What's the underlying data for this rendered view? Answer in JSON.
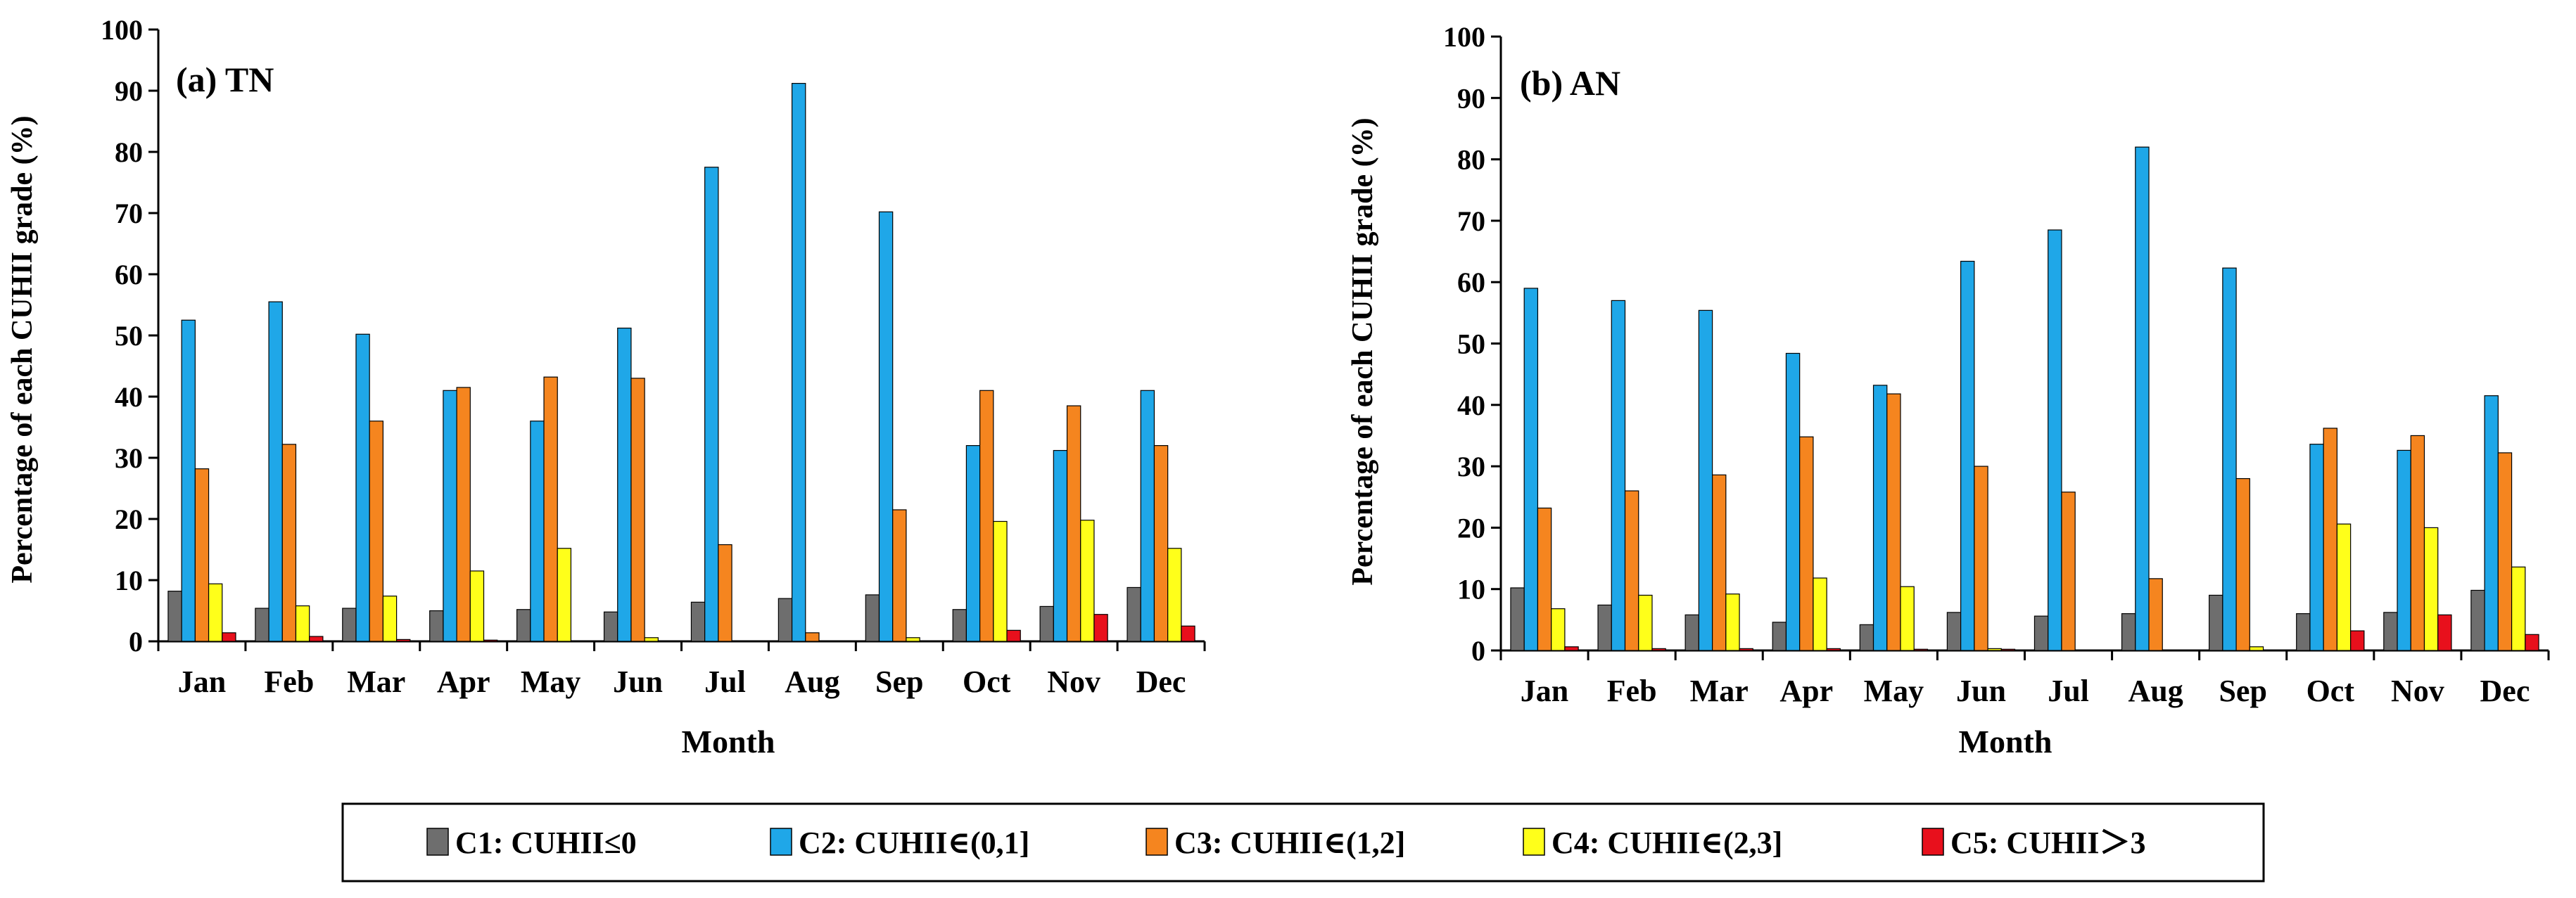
{
  "chart_data": [
    {
      "panel_label": "(a) TN",
      "type": "bar",
      "categories": [
        "Jan",
        "Feb",
        "Mar",
        "Apr",
        "May",
        "Jun",
        "Jul",
        "Aug",
        "Sep",
        "Oct",
        "Nov",
        "Dec"
      ],
      "xlabel": "Month",
      "ylabel": "Percentage of each CUHII grade (%)",
      "ylim": [
        0,
        100
      ],
      "yticks": [
        "0",
        "10",
        "20",
        "30",
        "40",
        "50",
        "60",
        "70",
        "80",
        "90",
        "100"
      ],
      "series": [
        {
          "name": "C1: CUHII≤0",
          "values": [
            8.2,
            5.4,
            5.4,
            5.0,
            5.2,
            4.8,
            6.4,
            7.0,
            7.6,
            5.2,
            5.7,
            8.8
          ]
        },
        {
          "name": "C2: CUHII∈(0,1]",
          "values": [
            52.5,
            55.5,
            50.2,
            41.0,
            36.0,
            51.2,
            77.5,
            91.2,
            70.2,
            32.0,
            31.2,
            41.0
          ]
        },
        {
          "name": "C3: CUHII∈(1,2]",
          "values": [
            28.2,
            32.2,
            36.0,
            41.5,
            43.2,
            43.0,
            15.8,
            1.4,
            21.5,
            41.0,
            38.5,
            32.0
          ]
        },
        {
          "name": "C4: CUHII∈(2,3]",
          "values": [
            9.4,
            5.8,
            7.4,
            11.5,
            15.2,
            0.6,
            0.0,
            0.0,
            0.6,
            19.6,
            19.8,
            15.2
          ]
        },
        {
          "name": "C5: CUHII＞3",
          "values": [
            1.4,
            0.8,
            0.3,
            0.2,
            0.1,
            0.1,
            0.0,
            0.0,
            0.0,
            1.8,
            4.4,
            2.5
          ]
        }
      ]
    },
    {
      "panel_label": "(b)  AN",
      "type": "bar",
      "categories": [
        "Jan",
        "Feb",
        "Mar",
        "Apr",
        "May",
        "Jun",
        "Jul",
        "Aug",
        "Sep",
        "Oct",
        "Nov",
        "Dec"
      ],
      "xlabel": "Month",
      "ylabel": "Percentage of each CUHII grade (%)",
      "ylim": [
        0,
        100
      ],
      "yticks": [
        "0",
        "10",
        "20",
        "30",
        "40",
        "50",
        "60",
        "70",
        "80",
        "90",
        "100"
      ],
      "series": [
        {
          "name": "C1: CUHII≤0",
          "values": [
            10.2,
            7.4,
            5.8,
            4.6,
            4.2,
            6.2,
            5.6,
            6.0,
            9.0,
            6.0,
            6.2,
            9.8
          ]
        },
        {
          "name": "C2: CUHII∈(0,1]",
          "values": [
            59.0,
            57.0,
            55.4,
            48.4,
            43.2,
            63.4,
            68.5,
            82.0,
            62.3,
            33.6,
            32.6,
            41.5
          ]
        },
        {
          "name": "C3: CUHII∈(1,2]",
          "values": [
            23.2,
            26.0,
            28.6,
            34.8,
            41.8,
            30.0,
            25.8,
            11.7,
            28.0,
            36.2,
            35.0,
            32.2
          ]
        },
        {
          "name": "C4: CUHII∈(2,3]",
          "values": [
            6.8,
            9.0,
            9.2,
            11.8,
            10.4,
            0.3,
            0.1,
            0.0,
            0.6,
            20.6,
            20.0,
            13.6
          ]
        },
        {
          "name": "C5: CUHII＞3",
          "values": [
            0.6,
            0.3,
            0.3,
            0.3,
            0.2,
            0.2,
            0.1,
            0.0,
            0.0,
            3.2,
            5.8,
            2.6
          ]
        }
      ]
    }
  ],
  "legend": {
    "items": [
      {
        "label": "C1: CUHII≤0",
        "color": "#6e6e6e"
      },
      {
        "label": "C2: CUHII∈(0,1]",
        "color": "#1fa7e8"
      },
      {
        "label": "C3: CUHII∈(1,2]",
        "color": "#f5851f"
      },
      {
        "label": "C4: CUHII∈(2,3]",
        "color": "#ffff1a"
      },
      {
        "label": "C5: CUHII＞3",
        "color": "#e8101c"
      }
    ]
  }
}
